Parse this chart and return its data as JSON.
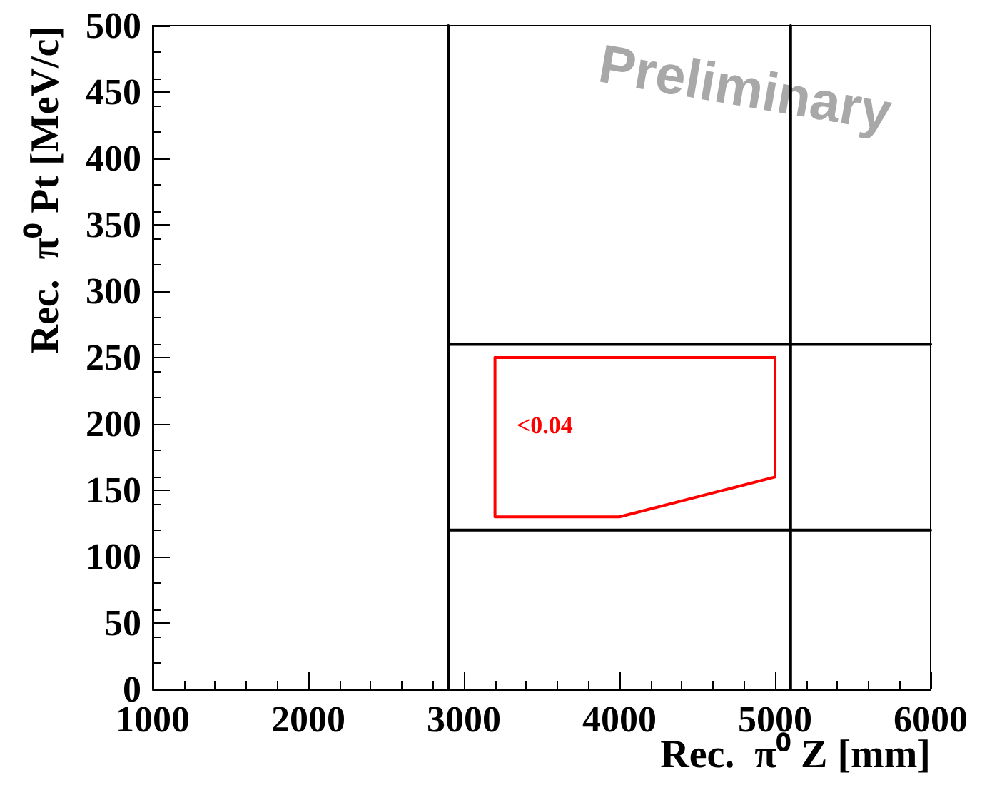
{
  "chart_data": {
    "type": "line",
    "xlabel": "Rec.  π⁰ Z [mm]",
    "ylabel": "Rec.  π⁰ Pt [MeV/c]",
    "xlim": [
      1000,
      6000
    ],
    "xticks": [
      1000,
      2000,
      3000,
      4000,
      5000,
      6000
    ],
    "ylim": [
      0,
      500
    ],
    "yticks": [
      0,
      50,
      100,
      150,
      200,
      250,
      300,
      350,
      400,
      450,
      500
    ],
    "grid": false,
    "marker": "none",
    "line_style": "solid",
    "series": [
      {
        "color": "#000000",
        "x": [
          2900,
          2900
        ],
        "values": [
          0,
          500
        ]
      },
      {
        "color": "#000000",
        "x": [
          5100,
          5100
        ],
        "values": [
          0,
          500
        ]
      },
      {
        "color": "#000000",
        "x": [
          2900,
          6000
        ],
        "values": [
          260,
          260
        ]
      },
      {
        "color": "#000000",
        "x": [
          2900,
          6000
        ],
        "values": [
          120,
          120
        ]
      },
      {
        "color": "#ff0000",
        "x": [
          3200,
          3200,
          4000,
          5000,
          5000
        ],
        "values": [
          250,
          130,
          130,
          160,
          250
        ]
      },
      {
        "color": "#ff0000",
        "x": [
          3200,
          5000
        ],
        "values": [
          250,
          250
        ]
      }
    ],
    "annotations": [
      "<0.04",
      "Preliminary"
    ]
  }
}
